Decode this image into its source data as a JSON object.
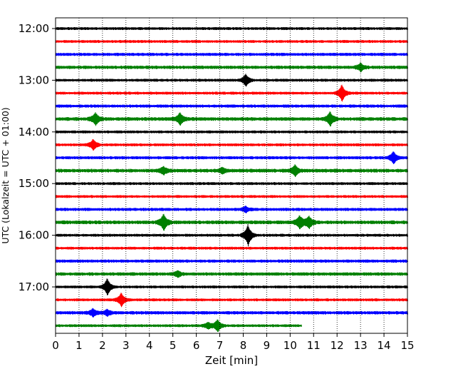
{
  "chart_data": {
    "type": "line",
    "title": "",
    "xlabel": "Zeit  [min]",
    "ylabel": "UTC (Lokalzeit = UTC + 01:00)",
    "xlim": [
      0,
      15
    ],
    "x_ticks": [
      "0",
      "1",
      "2",
      "3",
      "4",
      "5",
      "6",
      "7",
      "8",
      "9",
      "10",
      "11",
      "12",
      "13",
      "14",
      "15"
    ],
    "y_ticks": [
      {
        "label": "12:00",
        "hour": 12.0
      },
      {
        "label": "13:00",
        "hour": 13.0
      },
      {
        "label": "14:00",
        "hour": 14.0
      },
      {
        "label": "15:00",
        "hour": 15.0
      },
      {
        "label": "16:00",
        "hour": 16.0
      },
      {
        "label": "17:00",
        "hour": 17.0
      }
    ],
    "vertical_grid": "dotted",
    "color_cycle": [
      "#000000",
      "#ff0000",
      "#0000ff",
      "#008000"
    ],
    "traces": [
      {
        "start": "12:00",
        "color": "#000000",
        "end_min": 15,
        "noise": 2.0,
        "events": []
      },
      {
        "start": "12:15",
        "color": "#ff0000",
        "end_min": 15,
        "noise": 2.0,
        "events": []
      },
      {
        "start": "12:30",
        "color": "#0000ff",
        "end_min": 15,
        "noise": 2.2,
        "events": []
      },
      {
        "start": "12:45",
        "color": "#008000",
        "end_min": 15,
        "noise": 2.4,
        "events": [
          {
            "t": 13.0,
            "amp": 5
          }
        ]
      },
      {
        "start": "13:00",
        "color": "#000000",
        "end_min": 15,
        "noise": 2.0,
        "events": [
          {
            "t": 8.1,
            "amp": 8
          }
        ]
      },
      {
        "start": "13:15",
        "color": "#ff0000",
        "end_min": 15,
        "noise": 2.0,
        "events": [
          {
            "t": 12.2,
            "amp": 11
          }
        ]
      },
      {
        "start": "13:30",
        "color": "#0000ff",
        "end_min": 15,
        "noise": 2.2,
        "events": []
      },
      {
        "start": "13:45",
        "color": "#008000",
        "end_min": 15,
        "noise": 2.6,
        "events": [
          {
            "t": 1.7,
            "amp": 8
          },
          {
            "t": 5.3,
            "amp": 8
          },
          {
            "t": 11.7,
            "amp": 9
          }
        ]
      },
      {
        "start": "14:00",
        "color": "#000000",
        "end_min": 15,
        "noise": 2.0,
        "events": []
      },
      {
        "start": "14:15",
        "color": "#ff0000",
        "end_min": 15,
        "noise": 2.0,
        "events": [
          {
            "t": 1.6,
            "amp": 7
          }
        ]
      },
      {
        "start": "14:30",
        "color": "#0000ff",
        "end_min": 15,
        "noise": 2.2,
        "events": [
          {
            "t": 14.4,
            "amp": 8
          }
        ]
      },
      {
        "start": "14:45",
        "color": "#008000",
        "end_min": 15,
        "noise": 2.6,
        "events": [
          {
            "t": 4.6,
            "amp": 5
          },
          {
            "t": 7.1,
            "amp": 4
          },
          {
            "t": 10.2,
            "amp": 7
          }
        ]
      },
      {
        "start": "15:00",
        "color": "#000000",
        "end_min": 15,
        "noise": 2.0,
        "events": []
      },
      {
        "start": "15:15",
        "color": "#ff0000",
        "end_min": 15,
        "noise": 2.0,
        "events": []
      },
      {
        "start": "15:30",
        "color": "#0000ff",
        "end_min": 15,
        "noise": 2.2,
        "events": [
          {
            "t": 8.1,
            "amp": 4
          }
        ]
      },
      {
        "start": "15:45",
        "color": "#008000",
        "end_min": 15,
        "noise": 2.6,
        "events": [
          {
            "t": 4.6,
            "amp": 11
          },
          {
            "t": 10.4,
            "amp": 9
          },
          {
            "t": 10.8,
            "amp": 8
          }
        ]
      },
      {
        "start": "16:00",
        "color": "#000000",
        "end_min": 15,
        "noise": 2.0,
        "events": [
          {
            "t": 8.2,
            "amp": 14
          }
        ]
      },
      {
        "start": "16:15",
        "color": "#ff0000",
        "end_min": 15,
        "noise": 2.0,
        "events": []
      },
      {
        "start": "16:30",
        "color": "#0000ff",
        "end_min": 15,
        "noise": 2.2,
        "events": []
      },
      {
        "start": "16:45",
        "color": "#008000",
        "end_min": 15,
        "noise": 2.4,
        "events": [
          {
            "t": 5.2,
            "amp": 4
          }
        ]
      },
      {
        "start": "17:00",
        "color": "#000000",
        "end_min": 15,
        "noise": 2.0,
        "events": [
          {
            "t": 2.2,
            "amp": 11
          }
        ]
      },
      {
        "start": "17:15",
        "color": "#ff0000",
        "end_min": 15,
        "noise": 2.0,
        "events": [
          {
            "t": 2.8,
            "amp": 9
          }
        ]
      },
      {
        "start": "17:30",
        "color": "#0000ff",
        "end_min": 15,
        "noise": 2.4,
        "events": [
          {
            "t": 1.6,
            "amp": 5
          },
          {
            "t": 2.2,
            "amp": 4
          }
        ]
      },
      {
        "start": "17:45",
        "color": "#008000",
        "end_min": 10.5,
        "noise": 2.0,
        "events": [
          {
            "t": 6.5,
            "amp": 4
          },
          {
            "t": 6.9,
            "amp": 8
          }
        ]
      }
    ]
  }
}
